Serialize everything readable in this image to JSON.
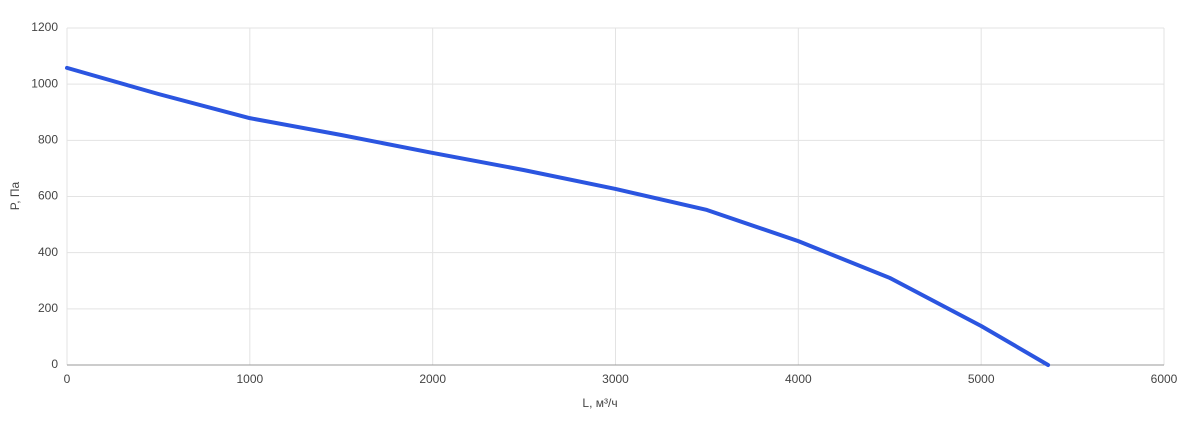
{
  "chart_data": {
    "type": "line",
    "x_label": "L, м³/ч",
    "y_label": "P, Па",
    "x": [
      0,
      500,
      1000,
      1500,
      2000,
      2500,
      3000,
      3500,
      4000,
      4500,
      5000,
      5366
    ],
    "series": [
      {
        "name": "P",
        "color": "#2b55e0",
        "values": [
          1058,
          965,
          879,
          819,
          755,
          694,
          627,
          552,
          441,
          310,
          139,
          0
        ]
      }
    ],
    "xlim": [
      0,
      6000
    ],
    "xticks": [
      0,
      1000,
      2000,
      3000,
      4000,
      5000,
      6000
    ],
    "ylim": [
      0,
      1200
    ],
    "yticks": [
      0,
      200,
      400,
      600,
      800,
      1000,
      1200
    ],
    "grid": true
  }
}
